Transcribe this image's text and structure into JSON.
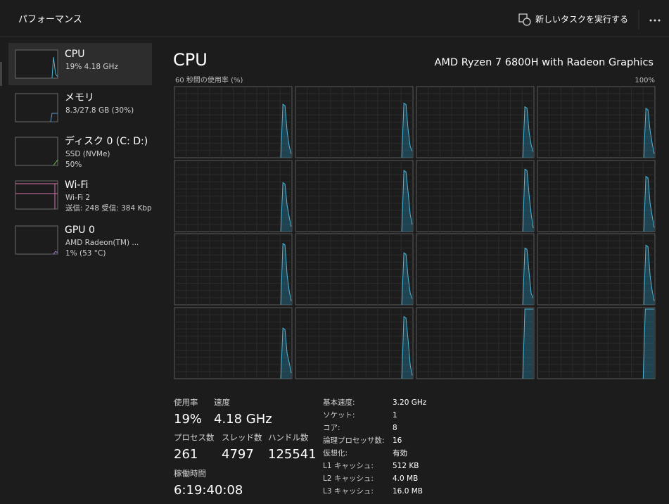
{
  "header": {
    "title": "パフォーマンス",
    "run_task": "新しいタスクを実行する"
  },
  "sidebar": {
    "items": [
      {
        "name": "CPU",
        "lines": [
          "19%  4.18 GHz"
        ]
      },
      {
        "name": "メモリ",
        "lines": [
          "8.3/27.8 GB (30%)"
        ]
      },
      {
        "name": "ディスク 0 (C: D:)",
        "lines": [
          "SSD (NVMe)",
          "50%"
        ]
      },
      {
        "name": "Wi-Fi",
        "lines": [
          "Wi-Fi 2",
          "送信: 248 受信: 384 Kbp"
        ]
      },
      {
        "name": "GPU 0",
        "lines": [
          "AMD Radeon(TM) ...",
          "1% (53 °C)"
        ]
      }
    ]
  },
  "main": {
    "title": "CPU",
    "model": "AMD Ryzen 7 6800H with Radeon Graphics",
    "graph_label": "60 秒間の使用率 (%)",
    "graph_max": "100%"
  },
  "stats": [
    {
      "label": "使用率",
      "value": "19%"
    },
    {
      "label": "速度",
      "value": "4.18 GHz"
    },
    {
      "label": "プロセス数",
      "value": "261"
    },
    {
      "label": "スレッド数",
      "value": "4797"
    },
    {
      "label": "ハンドル数",
      "value": "125541"
    },
    {
      "label": "稼働時間",
      "value": "6:19:40:08"
    }
  ],
  "details": [
    [
      "基本速度:",
      "3.20 GHz"
    ],
    [
      "ソケット:",
      "1"
    ],
    [
      "コア:",
      "8"
    ],
    [
      "論理プロセッサ数:",
      "16"
    ],
    [
      "仮想化:",
      "有効"
    ],
    [
      "L1 キャッシュ:",
      "512 KB"
    ],
    [
      "L2 キャッシュ:",
      "4.0 MB"
    ],
    [
      "L3 キャッシュ:",
      "16.0 MB"
    ]
  ]
}
